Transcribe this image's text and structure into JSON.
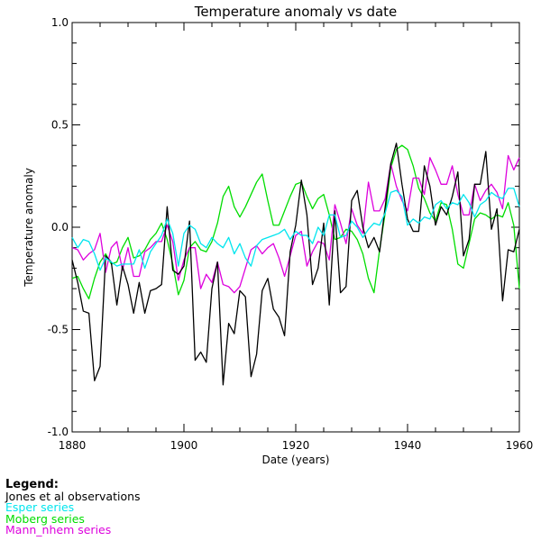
{
  "chart_data": {
    "type": "line",
    "title": "Temperature anomaly vs date",
    "xlabel": "Date (years)",
    "ylabel": "Temperature anomaly",
    "xlim": [
      1880,
      1960
    ],
    "ylim": [
      -1.0,
      1.0
    ],
    "xticks": [
      1880,
      1900,
      1920,
      1940,
      1960
    ],
    "xtick_labels": [
      "1880",
      "1900",
      "1920",
      "1940",
      "1960"
    ],
    "yticks": [
      -1.0,
      -0.5,
      0.0,
      0.5,
      1.0
    ],
    "ytick_labels": [
      "-1.0",
      "-0.5",
      "0.0",
      "0.5",
      "1.0"
    ],
    "grid": false,
    "legend_placement": "below chart, left",
    "legend_heading": "Legend:",
    "series": [
      {
        "name": "Jones et al observations",
        "color": "#000000",
        "x": [
          1880,
          1881,
          1882,
          1883,
          1884,
          1885,
          1886,
          1887,
          1888,
          1889,
          1890,
          1891,
          1892,
          1893,
          1894,
          1895,
          1896,
          1897,
          1898,
          1899,
          1900,
          1901,
          1902,
          1903,
          1904,
          1905,
          1906,
          1907,
          1908,
          1909,
          1910,
          1911,
          1912,
          1913,
          1914,
          1915,
          1916,
          1917,
          1918,
          1919,
          1920,
          1921,
          1922,
          1923,
          1924,
          1925,
          1926,
          1927,
          1928,
          1929,
          1930,
          1931,
          1932,
          1933,
          1934,
          1935,
          1936,
          1937,
          1938,
          1939,
          1940,
          1941,
          1942,
          1943,
          1944,
          1945,
          1946,
          1947,
          1948,
          1949,
          1950,
          1951,
          1952,
          1953,
          1954,
          1955,
          1956,
          1957,
          1958,
          1959,
          1960
        ],
        "y": [
          -0.16,
          -0.27,
          -0.41,
          -0.42,
          -0.75,
          -0.68,
          -0.14,
          -0.17,
          -0.38,
          -0.19,
          -0.28,
          -0.42,
          -0.27,
          -0.42,
          -0.31,
          -0.3,
          -0.28,
          0.1,
          -0.21,
          -0.23,
          -0.19,
          0.03,
          -0.65,
          -0.61,
          -0.66,
          -0.3,
          -0.17,
          -0.77,
          -0.47,
          -0.52,
          -0.31,
          -0.34,
          -0.73,
          -0.62,
          -0.31,
          -0.25,
          -0.4,
          -0.44,
          -0.53,
          -0.12,
          0.01,
          0.23,
          0.06,
          -0.28,
          -0.2,
          0.02,
          -0.38,
          0.08,
          -0.32,
          -0.29,
          0.13,
          0.18,
          0.0,
          -0.1,
          -0.05,
          -0.12,
          0.1,
          0.31,
          0.41,
          0.21,
          0.04,
          -0.02,
          -0.02,
          0.3,
          0.2,
          0.01,
          0.1,
          0.06,
          0.15,
          0.27,
          -0.14,
          -0.06,
          0.21,
          0.21,
          0.37,
          -0.01,
          0.09,
          -0.36,
          -0.11,
          -0.12,
          -0.01
        ]
      },
      {
        "name": "Esper series",
        "color": "#00e5ee",
        "x": [
          1880,
          1881,
          1882,
          1883,
          1884,
          1885,
          1886,
          1887,
          1888,
          1889,
          1890,
          1891,
          1892,
          1893,
          1894,
          1895,
          1896,
          1897,
          1898,
          1899,
          1900,
          1901,
          1902,
          1903,
          1904,
          1905,
          1906,
          1907,
          1908,
          1909,
          1910,
          1911,
          1912,
          1913,
          1914,
          1915,
          1916,
          1917,
          1918,
          1919,
          1920,
          1921,
          1922,
          1923,
          1924,
          1925,
          1926,
          1927,
          1928,
          1929,
          1930,
          1931,
          1932,
          1933,
          1934,
          1935,
          1936,
          1937,
          1938,
          1939,
          1940,
          1941,
          1942,
          1943,
          1944,
          1945,
          1946,
          1947,
          1948,
          1949,
          1950,
          1951,
          1952,
          1953,
          1954,
          1955,
          1956,
          1957,
          1958,
          1959,
          1960
        ],
        "y": [
          -0.05,
          -0.1,
          -0.06,
          -0.07,
          -0.13,
          -0.21,
          -0.15,
          -0.17,
          -0.19,
          -0.18,
          -0.18,
          -0.18,
          -0.11,
          -0.2,
          -0.12,
          -0.08,
          -0.04,
          0.04,
          -0.03,
          -0.19,
          -0.03,
          0.01,
          -0.01,
          -0.08,
          -0.1,
          -0.05,
          -0.08,
          -0.1,
          -0.05,
          -0.13,
          -0.08,
          -0.15,
          -0.19,
          -0.09,
          -0.06,
          -0.05,
          -0.04,
          -0.03,
          -0.01,
          -0.06,
          -0.02,
          -0.04,
          -0.04,
          -0.08,
          0.0,
          -0.04,
          0.06,
          0.06,
          -0.05,
          -0.04,
          0.03,
          0.0,
          -0.05,
          -0.01,
          0.02,
          0.01,
          0.07,
          0.17,
          0.18,
          0.15,
          0.01,
          0.04,
          0.02,
          0.05,
          0.04,
          0.11,
          0.13,
          0.09,
          0.12,
          0.11,
          0.16,
          0.12,
          0.05,
          0.11,
          0.13,
          0.17,
          0.15,
          0.14,
          0.19,
          0.19,
          0.1
        ]
      },
      {
        "name": "Moberg series",
        "color": "#00dd00",
        "x": [
          1880,
          1881,
          1882,
          1883,
          1884,
          1885,
          1886,
          1887,
          1888,
          1889,
          1890,
          1891,
          1892,
          1893,
          1894,
          1895,
          1896,
          1897,
          1898,
          1899,
          1900,
          1901,
          1902,
          1903,
          1904,
          1905,
          1906,
          1907,
          1908,
          1909,
          1910,
          1911,
          1912,
          1913,
          1914,
          1915,
          1916,
          1917,
          1918,
          1919,
          1920,
          1921,
          1922,
          1923,
          1924,
          1925,
          1926,
          1927,
          1928,
          1929,
          1930,
          1931,
          1932,
          1933,
          1934,
          1935,
          1936,
          1937,
          1938,
          1939,
          1940,
          1941,
          1942,
          1943,
          1944,
          1945,
          1946,
          1947,
          1948,
          1949,
          1950,
          1951,
          1952,
          1953,
          1954,
          1955,
          1956,
          1957,
          1958,
          1959,
          1960
        ],
        "y": [
          -0.25,
          -0.24,
          -0.3,
          -0.35,
          -0.25,
          -0.17,
          -0.13,
          -0.18,
          -0.17,
          -0.1,
          -0.05,
          -0.15,
          -0.14,
          -0.11,
          -0.06,
          -0.03,
          0.02,
          -0.06,
          -0.18,
          -0.33,
          -0.26,
          -0.1,
          -0.07,
          -0.11,
          -0.12,
          -0.07,
          0.02,
          0.15,
          0.2,
          0.1,
          0.05,
          0.1,
          0.16,
          0.22,
          0.26,
          0.13,
          0.01,
          0.01,
          0.08,
          0.15,
          0.21,
          0.22,
          0.15,
          0.09,
          0.14,
          0.16,
          0.06,
          -0.06,
          -0.05,
          -0.01,
          -0.02,
          -0.06,
          -0.13,
          -0.25,
          -0.32,
          -0.11,
          0.07,
          0.29,
          0.38,
          0.4,
          0.38,
          0.3,
          0.19,
          0.14,
          0.07,
          0.03,
          0.12,
          0.11,
          -0.01,
          -0.18,
          -0.2,
          -0.08,
          0.04,
          0.07,
          0.06,
          0.04,
          0.06,
          0.05,
          0.12,
          0.01,
          -0.3
        ]
      },
      {
        "name": "Mann_nhem series",
        "color": "#dd00dd",
        "x": [
          1880,
          1881,
          1882,
          1883,
          1884,
          1885,
          1886,
          1887,
          1888,
          1889,
          1890,
          1891,
          1892,
          1893,
          1894,
          1895,
          1896,
          1897,
          1898,
          1899,
          1900,
          1901,
          1902,
          1903,
          1904,
          1905,
          1906,
          1907,
          1908,
          1909,
          1910,
          1911,
          1912,
          1913,
          1914,
          1915,
          1916,
          1917,
          1918,
          1919,
          1920,
          1921,
          1922,
          1923,
          1924,
          1925,
          1926,
          1927,
          1928,
          1929,
          1930,
          1931,
          1932,
          1933,
          1934,
          1935,
          1936,
          1937,
          1938,
          1939,
          1940,
          1941,
          1942,
          1943,
          1944,
          1945,
          1946,
          1947,
          1948,
          1949,
          1950,
          1951,
          1952,
          1953,
          1954,
          1955,
          1956,
          1957,
          1958,
          1959,
          1960
        ],
        "y": [
          -0.1,
          -0.11,
          -0.16,
          -0.13,
          -0.11,
          -0.03,
          -0.22,
          -0.1,
          -0.07,
          -0.21,
          -0.1,
          -0.24,
          -0.24,
          -0.12,
          -0.1,
          -0.07,
          -0.07,
          0.01,
          -0.07,
          -0.26,
          -0.16,
          -0.1,
          -0.1,
          -0.3,
          -0.23,
          -0.27,
          -0.17,
          -0.28,
          -0.29,
          -0.32,
          -0.29,
          -0.2,
          -0.11,
          -0.09,
          -0.13,
          -0.1,
          -0.08,
          -0.15,
          -0.24,
          -0.14,
          -0.04,
          -0.02,
          -0.19,
          -0.12,
          -0.07,
          -0.08,
          -0.16,
          0.11,
          0.02,
          -0.08,
          0.09,
          0.01,
          -0.03,
          0.22,
          0.08,
          0.08,
          0.14,
          0.31,
          0.2,
          0.13,
          0.08,
          0.24,
          0.24,
          0.16,
          0.34,
          0.28,
          0.21,
          0.21,
          0.3,
          0.16,
          0.06,
          0.06,
          0.21,
          0.13,
          0.18,
          0.21,
          0.17,
          0.09,
          0.35,
          0.28,
          0.34
        ]
      }
    ]
  }
}
